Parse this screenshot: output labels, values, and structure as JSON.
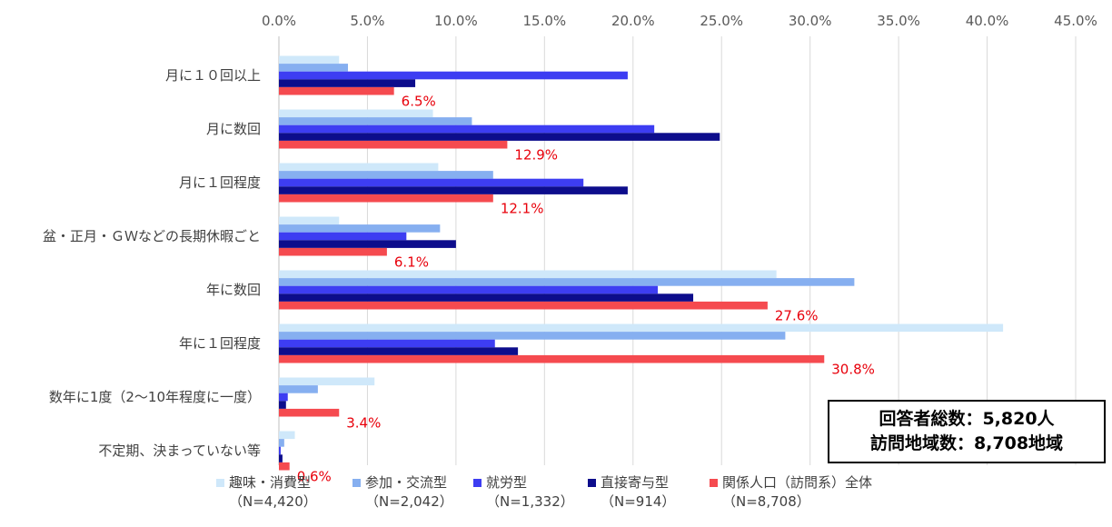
{
  "chart_data": {
    "type": "bar",
    "orientation": "horizontal",
    "categories": [
      "月に１０回以上",
      "月に数回",
      "月に１回程度",
      "盆・正月・ＧＷなどの長期休暇ごと",
      "年に数回",
      "年に１回程度",
      "数年に1度（2～10年程度に一度）",
      "不定期、決まっていない等"
    ],
    "series": [
      {
        "name": "趣味・消費型",
        "n": "（N=4,420）",
        "color": "#cfe8fa",
        "values": [
          3.4,
          8.7,
          9.0,
          3.4,
          28.1,
          40.9,
          5.4,
          0.9
        ]
      },
      {
        "name": "参加・交流型",
        "n": "（N=2,042）",
        "color": "#86aff0",
        "values": [
          3.9,
          10.9,
          12.1,
          9.1,
          32.5,
          28.6,
          2.2,
          0.3
        ]
      },
      {
        "name": "就労型",
        "n": "（N=1,332）",
        "color": "#3d3df2",
        "values": [
          19.7,
          21.2,
          17.2,
          7.2,
          21.4,
          12.2,
          0.5,
          0.1
        ]
      },
      {
        "name": "直接寄与型",
        "n": "（N=914）",
        "color": "#0d0d8c",
        "values": [
          7.7,
          24.9,
          19.7,
          10.0,
          23.4,
          13.5,
          0.4,
          0.2
        ]
      },
      {
        "name": "関係人口（訪問系）全体",
        "n": "（N=8,708）",
        "color": "#f54a4f",
        "values": [
          6.5,
          12.9,
          12.1,
          6.1,
          27.6,
          30.8,
          3.4,
          0.6
        ]
      }
    ],
    "data_labels": [
      "6.5%",
      "12.9%",
      "12.1%",
      "6.1%",
      "27.6%",
      "30.8%",
      "3.4%",
      "0.6%"
    ],
    "xlim": [
      0,
      45
    ],
    "xticks": [
      "0.0%",
      "5.0%",
      "10.0%",
      "15.0%",
      "20.0%",
      "25.0%",
      "30.0%",
      "35.0%",
      "40.0%",
      "45.0%"
    ],
    "grid": "vertical",
    "legend_position": "bottom"
  },
  "infobox": {
    "line1": "回答者総数：5,820人",
    "line2": "訪問地域数：8,708地域"
  }
}
